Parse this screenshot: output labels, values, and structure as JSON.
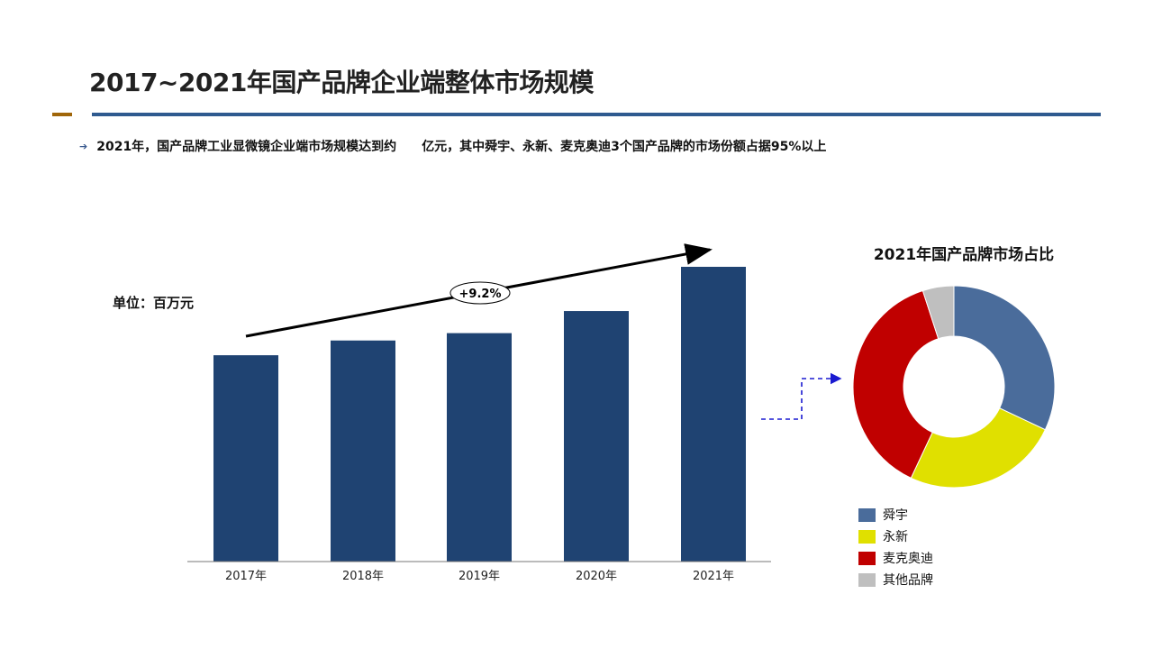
{
  "header": {
    "title": "2017~2021年国产品牌企业端整体市场规模",
    "bullet_part1": "2021年，国产品牌工业显微镜企业端市场规模达到约",
    "bullet_part2": "亿元，其中舜宇、永新、麦克奥迪3个国产品牌的市场份额占据95%以上"
  },
  "colors": {
    "accent": "#a0660a",
    "rule": "#2f5a8f",
    "bar": "#1f4372"
  },
  "chart_data": [
    {
      "type": "bar",
      "title": "",
      "unit_label": "单位：百万元",
      "categories": [
        "2017年",
        "2018年",
        "2019年",
        "2020年",
        "2021年"
      ],
      "values": [
        70,
        75,
        77.5,
        85,
        100
      ],
      "values_note": "relative heights (2021 = 100), no axis shown",
      "ylim": [
        0,
        100
      ],
      "trend_annotation": "+9.2%",
      "color": "#1f4372",
      "grid": false
    },
    {
      "type": "pie",
      "style": "donut",
      "title": "2021年国产品牌市场占比",
      "labels": [
        "舜宇",
        "永新",
        "麦克奥迪",
        "其他品牌"
      ],
      "values": [
        32,
        25,
        38,
        5
      ],
      "colors": [
        "#4a6c9b",
        "#e0e000",
        "#c00000",
        "#bfbfbf"
      ],
      "legend": "bottom-left"
    }
  ]
}
